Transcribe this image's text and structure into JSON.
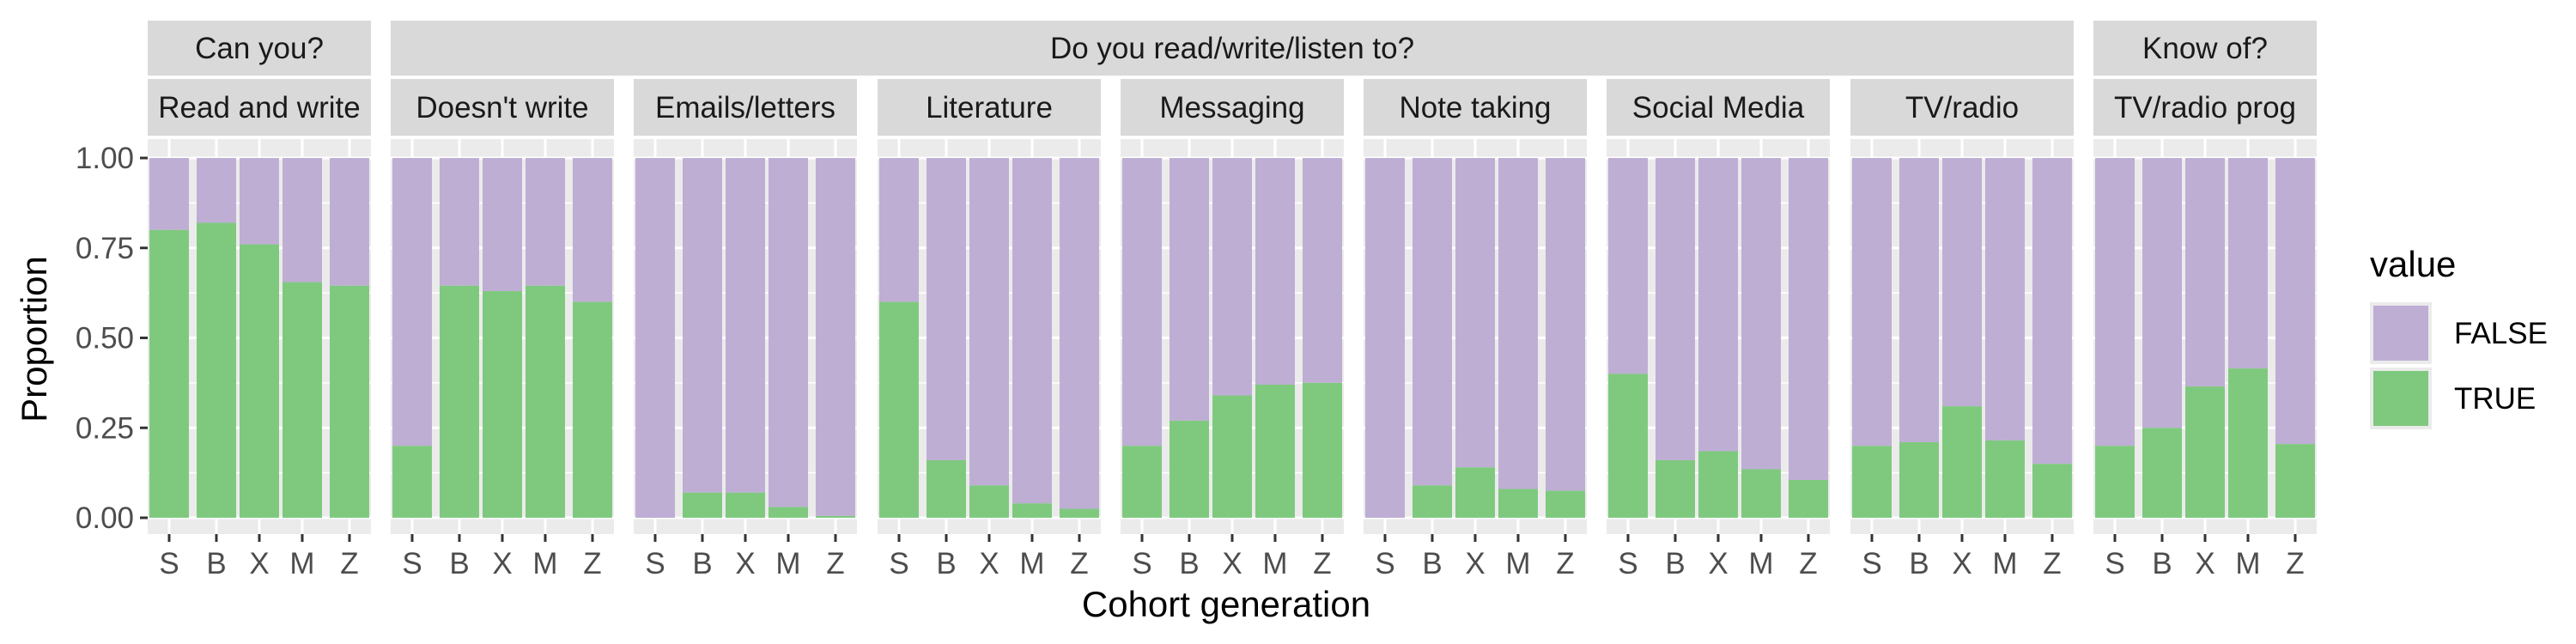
{
  "chart_data": {
    "type": "bar",
    "stacked": true,
    "xlabel": "Cohort generation",
    "ylabel": "Proportion",
    "ylim": [
      0,
      1
    ],
    "yticks": [
      "0.00",
      "0.25",
      "0.50",
      "0.75",
      "1.00"
    ],
    "categories": [
      "S",
      "B",
      "X",
      "M",
      "Z"
    ],
    "legend": {
      "title": "value",
      "position": "right",
      "entries": [
        {
          "label": "FALSE",
          "color": "#BEAED4"
        },
        {
          "label": "TRUE",
          "color": "#7FC97F"
        }
      ]
    },
    "strip_groups": [
      {
        "label": "Can you?",
        "panels": [
          0
        ]
      },
      {
        "label": "Do you read/write/listen to?",
        "panels": [
          1,
          2,
          3,
          4,
          5,
          6,
          7
        ]
      },
      {
        "label": "Know of?",
        "panels": [
          8
        ]
      }
    ],
    "panels": [
      {
        "label": "Read and write",
        "true_values": [
          0.8,
          0.82,
          0.76,
          0.655,
          0.645
        ]
      },
      {
        "label": "Doesn't write",
        "true_values": [
          0.2,
          0.645,
          0.63,
          0.645,
          0.6
        ]
      },
      {
        "label": "Emails/letters",
        "true_values": [
          0.0,
          0.07,
          0.07,
          0.03,
          0.005
        ]
      },
      {
        "label": "Literature",
        "true_values": [
          0.6,
          0.16,
          0.09,
          0.04,
          0.025
        ]
      },
      {
        "label": "Messaging",
        "true_values": [
          0.2,
          0.27,
          0.34,
          0.37,
          0.375
        ]
      },
      {
        "label": "Note taking",
        "true_values": [
          0.0,
          0.09,
          0.14,
          0.08,
          0.075
        ]
      },
      {
        "label": "Social Media",
        "true_values": [
          0.4,
          0.16,
          0.185,
          0.135,
          0.105
        ]
      },
      {
        "label": "TV/radio",
        "true_values": [
          0.2,
          0.21,
          0.31,
          0.215,
          0.15
        ]
      },
      {
        "label": "TV/radio prog",
        "true_values": [
          0.2,
          0.25,
          0.365,
          0.415,
          0.205
        ]
      }
    ],
    "grid": true,
    "panel_background": "#EBEBEB",
    "strip_background": "#D9D9D9"
  }
}
